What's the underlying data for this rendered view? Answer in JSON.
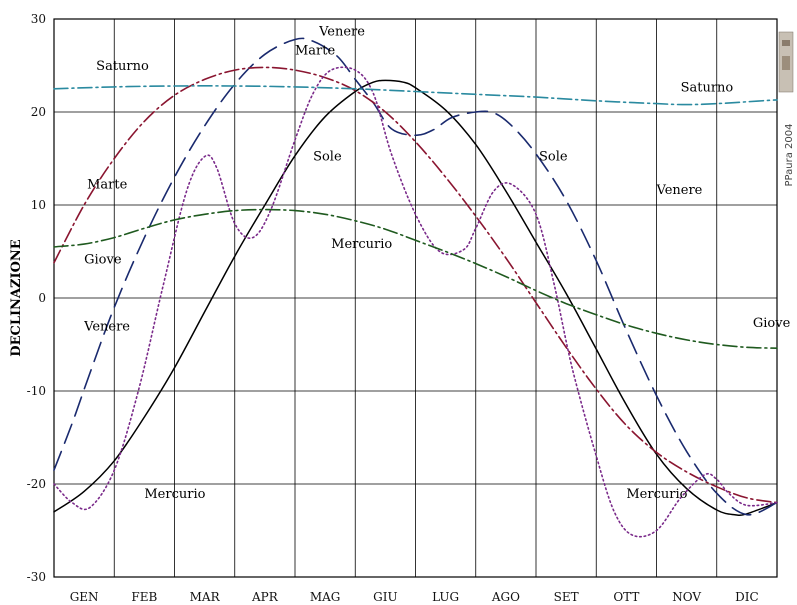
{
  "chart_data": {
    "type": "line",
    "ylabel": "DECLINAZIONE",
    "xlabel": "",
    "ylim": [
      -30,
      30
    ],
    "xlim": [
      0,
      12
    ],
    "grid": true,
    "months": [
      "GEN",
      "FEB",
      "MAR",
      "APR",
      "MAG",
      "GIU",
      "LUG",
      "AGO",
      "SET",
      "OTT",
      "NOV",
      "DIC"
    ],
    "yticks": [
      30,
      20,
      10,
      0,
      -10,
      -20,
      -30
    ],
    "credit": "PPaura 2004",
    "series": [
      {
        "name": "Sole",
        "color": "#000000",
        "style": "solid",
        "x": [
          0,
          0.5,
          1,
          1.5,
          2,
          2.5,
          3,
          3.5,
          4,
          4.5,
          5,
          5.3,
          5.5,
          5.8,
          6,
          6.5,
          7,
          7.5,
          8,
          8.5,
          9,
          9.5,
          10,
          10.5,
          11,
          11.3,
          11.5,
          12
        ],
        "y": [
          -23,
          -20.8,
          -17.5,
          -12.8,
          -7.5,
          -1.5,
          4.5,
          10,
          15.3,
          19.5,
          22.2,
          23.2,
          23.4,
          23.2,
          22.6,
          20.2,
          16.5,
          11.5,
          6,
          0.5,
          -5.5,
          -11.5,
          -16.8,
          -20.5,
          -22.8,
          -23.3,
          -23.2,
          -22
        ]
      },
      {
        "name": "Venere",
        "color": "#1a2a6e",
        "style": "longdash",
        "x": [
          0,
          0.3,
          0.6,
          1,
          1.5,
          2,
          2.5,
          3,
          3.5,
          4,
          4.3,
          4.7,
          5,
          5.3,
          5.6,
          6,
          6.3,
          6.6,
          7,
          7.3,
          7.6,
          8,
          8.5,
          9,
          9.5,
          10,
          10.5,
          11,
          11.5,
          12
        ],
        "y": [
          -18.5,
          -13.5,
          -8,
          -1,
          6.5,
          13,
          18.5,
          23,
          26.2,
          27.8,
          27.6,
          26,
          23.5,
          21,
          18.2,
          17.5,
          18.1,
          19.4,
          20,
          19.9,
          18.5,
          15.5,
          10.5,
          4,
          -3.5,
          -10.5,
          -16.5,
          -21,
          -23.3,
          -22
        ]
      },
      {
        "name": "Marte",
        "color": "#8a1530",
        "style": "dashdot",
        "x": [
          0,
          0.5,
          1,
          1.5,
          2,
          2.5,
          3,
          3.5,
          4,
          4.5,
          5,
          5.5,
          6,
          6.5,
          7,
          7.5,
          8,
          8.5,
          9,
          9.5,
          10,
          10.5,
          11,
          11.5,
          12
        ],
        "y": [
          3.8,
          10,
          15,
          19,
          21.8,
          23.5,
          24.5,
          24.8,
          24.5,
          23.7,
          22.3,
          20,
          16.8,
          13,
          8.8,
          4.3,
          -0.5,
          -5.3,
          -9.8,
          -13.7,
          -16.6,
          -18.7,
          -20.3,
          -21.5,
          -22
        ]
      },
      {
        "name": "Mercurio",
        "color": "#7a2a8a",
        "style": "dotted",
        "x": [
          0,
          0.3,
          0.6,
          1,
          1.4,
          1.8,
          2.2,
          2.5,
          2.7,
          3,
          3.3,
          3.6,
          4,
          4.3,
          4.6,
          5,
          5.3,
          5.6,
          6,
          6.4,
          6.8,
          7,
          7.3,
          7.6,
          8,
          8.3,
          8.6,
          9,
          9.3,
          9.6,
          10,
          10.4,
          10.8,
          11,
          11.2,
          11.5,
          12
        ],
        "y": [
          -20,
          -22,
          -22.5,
          -18.5,
          -10,
          1,
          11.5,
          15.2,
          14,
          8,
          6.5,
          9.5,
          17,
          22,
          24.5,
          24.5,
          22,
          15.5,
          9,
          5,
          5.2,
          7.5,
          11.5,
          12.2,
          9,
          1.5,
          -7.5,
          -17,
          -23,
          -25.5,
          -25,
          -21.5,
          -19,
          -19.5,
          -21,
          -22.3,
          -22
        ]
      },
      {
        "name": "Giove",
        "color": "#1f5a1f",
        "style": "dashdot",
        "x": [
          0,
          0.5,
          1,
          1.5,
          2,
          2.5,
          3,
          3.5,
          4,
          4.5,
          5,
          5.5,
          6,
          6.5,
          7,
          7.5,
          8,
          8.5,
          9,
          9.5,
          10,
          10.5,
          11,
          11.5,
          12
        ],
        "y": [
          5.5,
          5.8,
          6.5,
          7.5,
          8.4,
          9,
          9.4,
          9.5,
          9.4,
          9,
          8.3,
          7.4,
          6.2,
          5,
          3.7,
          2.3,
          0.8,
          -0.6,
          -1.8,
          -2.9,
          -3.8,
          -4.5,
          -5,
          -5.3,
          -5.4
        ]
      },
      {
        "name": "Saturno",
        "color": "#2a8aa0",
        "style": "dashdot",
        "x": [
          0,
          1,
          2,
          3,
          4,
          5,
          6,
          7,
          8,
          9,
          10,
          10.5,
          11,
          11.5,
          12
        ],
        "y": [
          22.5,
          22.7,
          22.8,
          22.8,
          22.7,
          22.5,
          22.2,
          21.9,
          21.6,
          21.2,
          20.9,
          20.8,
          20.9,
          21.1,
          21.3
        ]
      }
    ],
    "labels": [
      {
        "series": "Saturno",
        "text": "Saturno",
        "x": 0.7,
        "y": 24.5
      },
      {
        "series": "Saturno",
        "text": "Saturno",
        "x": 10.4,
        "y": 22.2
      },
      {
        "series": "Venere",
        "text": "Venere",
        "x": 4.4,
        "y": 28.2
      },
      {
        "series": "Venere",
        "text": "Venere",
        "x": 10.0,
        "y": 11.2
      },
      {
        "series": "Venere",
        "text": "Venere",
        "x": 0.5,
        "y": -3.5
      },
      {
        "series": "Marte",
        "text": "Marte",
        "x": 4.0,
        "y": 26.2
      },
      {
        "series": "Marte",
        "text": "Marte",
        "x": 0.55,
        "y": 11.8
      },
      {
        "series": "Sole",
        "text": "Sole",
        "x": 4.3,
        "y": 14.8
      },
      {
        "series": "Sole",
        "text": "Sole",
        "x": 8.05,
        "y": 14.8
      },
      {
        "series": "Mercurio",
        "text": "Mercurio",
        "x": 4.6,
        "y": 5.4
      },
      {
        "series": "Mercurio",
        "text": "Mercurio",
        "x": 1.5,
        "y": -21.5
      },
      {
        "series": "Mercurio",
        "text": "Mercurio",
        "x": 9.5,
        "y": -21.5
      },
      {
        "series": "Giove",
        "text": "Giove",
        "x": 0.5,
        "y": 3.7
      },
      {
        "series": "Giove",
        "text": "Giove",
        "x": 11.6,
        "y": -3.1
      }
    ]
  }
}
